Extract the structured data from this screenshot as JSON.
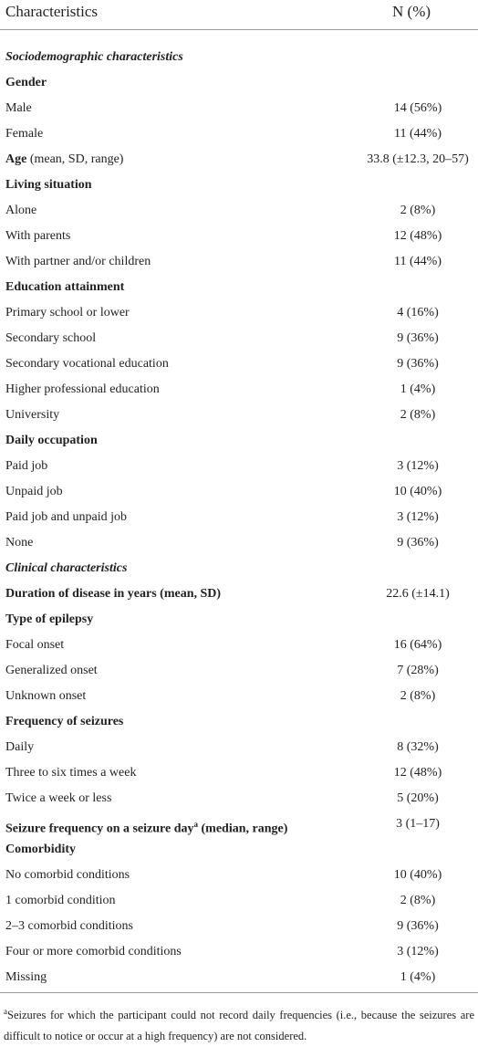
{
  "table": {
    "header": [
      "Characteristics",
      "N (%)"
    ],
    "rows": [
      {
        "label": "Sociodemographic characteristics",
        "style": "section"
      },
      {
        "label": "Gender",
        "style": "group"
      },
      {
        "label": "Male",
        "value": "14 (56%)"
      },
      {
        "label": "Female",
        "value": "11 (44%)"
      },
      {
        "label": "Age",
        "label_rest": " (mean, SD, range)",
        "label_rest_weight": "normal",
        "value": "33.8 (±12.3, 20–57)",
        "style": "group"
      },
      {
        "label": "Living situation",
        "style": "group"
      },
      {
        "label": "Alone",
        "value": "2 (8%)"
      },
      {
        "label": "With parents",
        "value": "12 (48%)"
      },
      {
        "label": "With partner and/or children",
        "value": "11 (44%)"
      },
      {
        "label": "Education attainment",
        "style": "group"
      },
      {
        "label": "Primary school or lower",
        "value": "4 (16%)"
      },
      {
        "label": "Secondary school",
        "value": "9 (36%)"
      },
      {
        "label": "Secondary vocational education",
        "value": "9 (36%)"
      },
      {
        "label": "Higher professional education",
        "value": "1 (4%)"
      },
      {
        "label": "University",
        "value": "2 (8%)"
      },
      {
        "label": "Daily occupation",
        "style": "group"
      },
      {
        "label": "Paid job",
        "value": "3 (12%)"
      },
      {
        "label": "Unpaid job",
        "value": "10 (40%)"
      },
      {
        "label": "Paid job and unpaid job",
        "value": "3 (12%)"
      },
      {
        "label": "None",
        "value": "9 (36%)"
      },
      {
        "label": "Clinical characteristics",
        "style": "section"
      },
      {
        "label": "Duration of disease in years (mean, SD)",
        "value": "22.6 (±14.1)",
        "style": "group"
      },
      {
        "label": "Type of epilepsy",
        "style": "group"
      },
      {
        "label": "Focal onset",
        "value": "16 (64%)"
      },
      {
        "label": "Generalized onset",
        "value": "7 (28%)"
      },
      {
        "label": "Unknown onset",
        "value": "2 (8%)"
      },
      {
        "label": "Frequency of seizures",
        "style": "group"
      },
      {
        "label": "Daily",
        "value": "8 (32%)"
      },
      {
        "label": "Three to six times a week",
        "value": "12 (48%)"
      },
      {
        "label": "Twice a week or less",
        "value": "5 (20%)"
      },
      {
        "label": "Seizure frequency on a seizure day",
        "superscript": "a",
        "label_rest": " (median, range)",
        "label_rest_weight": "bold",
        "value": "3 (1–17)",
        "style": "group"
      },
      {
        "label": "Comorbidity",
        "style": "group"
      },
      {
        "label": "No comorbid conditions",
        "value": "10 (40%)"
      },
      {
        "label": "1 comorbid condition",
        "value": "2 (8%)"
      },
      {
        "label": "2–3 comorbid conditions",
        "value": "9 (36%)"
      },
      {
        "label": "Four or more comorbid conditions",
        "value": "3 (12%)"
      },
      {
        "label": "Missing",
        "value": "1 (4%)"
      }
    ]
  },
  "footnote": {
    "mark": "a",
    "text": "Seizures for which the participant could not record daily frequencies (i.e., because the seizures are difficult to notice or occur at a high frequency) are not considered."
  }
}
